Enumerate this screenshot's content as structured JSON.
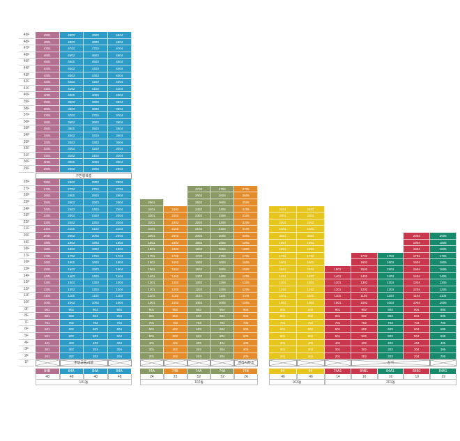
{
  "colors": {
    "pink": "#b3708f",
    "blue": "#2c9cc6",
    "olive": "#8a9a64",
    "orange": "#e48c2a",
    "yellow": "#e6c51d",
    "red": "#c8374b",
    "green": "#168a6a"
  },
  "floor_labels": [
    "49F",
    "48F",
    "47F",
    "46F",
    "45F",
    "44F",
    "43F",
    "42F",
    "41F",
    "40F",
    "39F",
    "38F",
    "37F",
    "36F",
    "35F",
    "34F",
    "33F",
    "32F",
    "31F",
    "30F",
    "29F",
    "",
    "28F",
    "27F",
    "26F",
    "25F",
    "24F",
    "23F",
    "22F",
    "21F",
    "20F",
    "19F",
    "18F",
    "17F",
    "16F",
    "15F",
    "14F",
    "13F",
    "12F",
    "11F",
    "10F",
    "9F",
    "8F",
    "7F",
    "6F",
    "5F",
    "4F",
    "3F",
    "2F",
    "1F"
  ],
  "notes": {
    "refuge_floor": "구민행복층",
    "b101_ground": "주민공동시설",
    "b102_ground": "관리사무소",
    "b201_ground": "상가"
  },
  "buildings": [
    {
      "name": "101동",
      "columns": [
        {
          "color": "pink",
          "type": "84B",
          "count": "48",
          "suffix": "01",
          "top": 49
        },
        {
          "color": "blue",
          "type": "84A",
          "count": "48",
          "suffix": "02",
          "top": 49
        },
        {
          "color": "blue",
          "type": "84A",
          "count": "48",
          "suffix": "03",
          "top": 49
        },
        {
          "color": "blue",
          "type": "84A",
          "count": "48",
          "suffix": "04",
          "top": 49
        }
      ]
    },
    {
      "name": "102동",
      "columns": [
        {
          "color": "olive",
          "type": "74A",
          "count": "24",
          "suffix": "01",
          "top": 25
        },
        {
          "color": "orange",
          "type": "74B",
          "count": "23",
          "suffix": "02",
          "top": 24
        },
        {
          "color": "olive",
          "type": "74A",
          "count": "52",
          "suffix": "03",
          "top": 27
        },
        {
          "color": "olive",
          "type": "74A",
          "count": "52",
          "suffix": "04",
          "top": 27
        },
        {
          "color": "orange",
          "type": "74B",
          "count": "26",
          "suffix": "05",
          "top": 27
        }
      ]
    },
    {
      "name": "103동",
      "columns": [
        {
          "color": "yellow",
          "type": "84",
          "count": "46",
          "suffix": "01",
          "top": 24
        },
        {
          "color": "yellow",
          "type": "84",
          "count": "46",
          "suffix": "02",
          "top": 24
        }
      ]
    },
    {
      "name": "201동",
      "columns": [
        {
          "color": "red",
          "type": "74A1",
          "count": "14",
          "suffix": "01",
          "top": 15
        },
        {
          "color": "red",
          "type": "84B1",
          "count": "16",
          "suffix": "02",
          "top": 17
        },
        {
          "color": "green",
          "type": "84A1",
          "count": "16",
          "suffix": "03",
          "top": 17
        },
        {
          "color": "red",
          "type": "84B1",
          "count": "19",
          "suffix": "04",
          "top": 20
        },
        {
          "color": "green",
          "type": "84A1",
          "count": "19",
          "suffix": "05",
          "top": 20
        }
      ]
    }
  ]
}
